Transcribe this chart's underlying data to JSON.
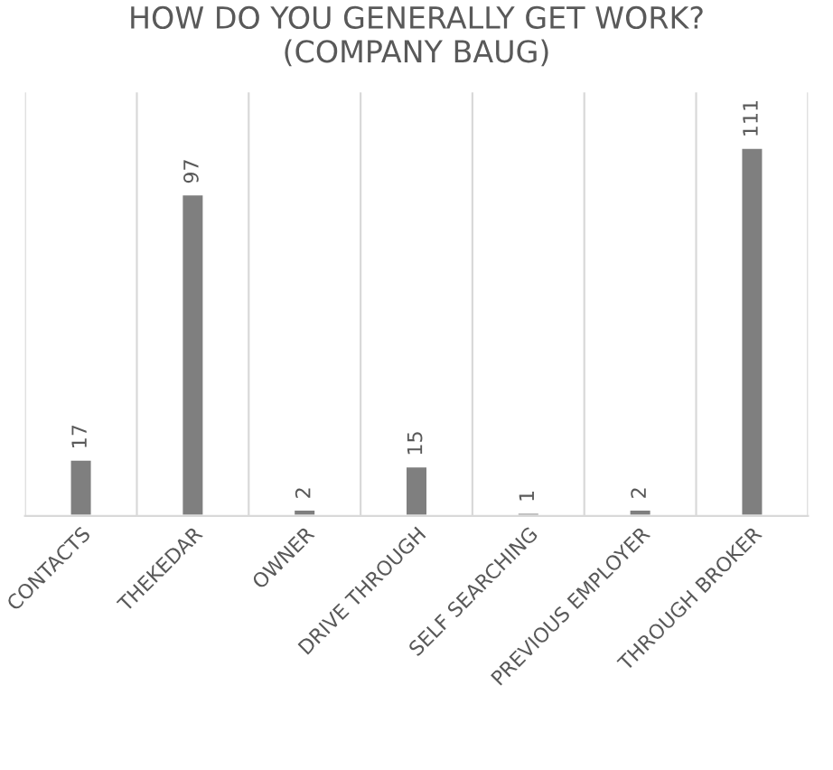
{
  "chart_data": {
    "type": "bar",
    "title": "HOW DO YOU GENERALLY GET WORK?\n(COMPANY BAUG)",
    "categories": [
      "CONTACTS",
      "THEKEDAR",
      "OWNER",
      "DRIVE THROUGH",
      "SELF SEARCHING",
      "PREVIOUS EMPLOYER",
      "THROUGH BROKER"
    ],
    "values": [
      17,
      97,
      2,
      15,
      1,
      2,
      111
    ],
    "color": "#7f7f7f",
    "data_labels": true,
    "grid": "x",
    "tick_labels": "x"
  }
}
